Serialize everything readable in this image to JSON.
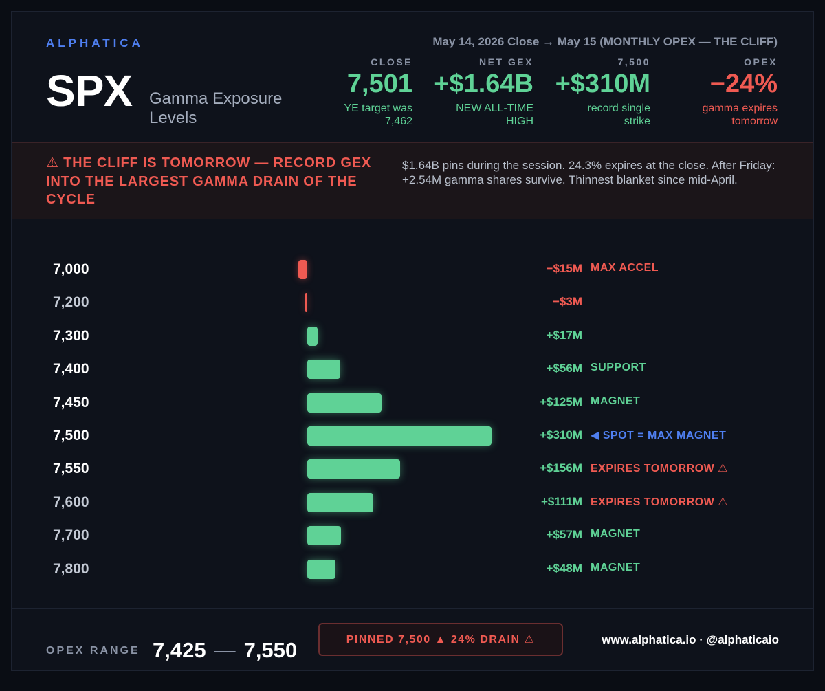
{
  "header": {
    "brand": "ALPHATICA",
    "ticker": "SPX",
    "subtitle": "Gamma Exposure Levels",
    "dateline": "May 14, 2026 Close → May 15 (MONTHLY OPEX — THE CLIFF)"
  },
  "stats": [
    {
      "label": "CLOSE",
      "value": "7,501",
      "sub": "YE target was 7,462",
      "tone": "green"
    },
    {
      "label": "NET GEX",
      "value": "+$1.64B",
      "sub": "NEW ALL-TIME HIGH",
      "tone": "green"
    },
    {
      "label": "7,500",
      "value": "+$310M",
      "sub": "record single strike",
      "tone": "green"
    },
    {
      "label": "OPEX",
      "value": "−24%",
      "sub": "gamma expires tomorrow",
      "tone": "red"
    }
  ],
  "alert": {
    "title": "⚠ THE CLIFF IS TOMORROW — RECORD GEX INTO THE LARGEST GAMMA DRAIN OF THE CYCLE",
    "body": "$1.64B pins during the session. 24.3% expires at the close. After Friday: +2.54M gamma shares survive. Thinnest blanket since mid-April."
  },
  "chart_data": {
    "type": "bar",
    "orientation": "horizontal",
    "unit": "$M",
    "categories": [
      "7,000",
      "7,200",
      "7,300",
      "7,400",
      "7,450",
      "7,500",
      "7,550",
      "7,600",
      "7,700",
      "7,800"
    ],
    "values": [
      -15,
      -3,
      17,
      56,
      125,
      310,
      156,
      111,
      57,
      48
    ],
    "value_labels": [
      "−$15M",
      "−$3M",
      "+$17M",
      "+$56M",
      "+$125M",
      "+$310M",
      "+$156M",
      "+$111M",
      "+$57M",
      "+$48M"
    ],
    "tags": [
      "MAX ACCEL",
      "",
      "",
      "SUPPORT",
      "MAGNET",
      "◀ SPOT = MAX MAGNET",
      "EXPIRES TOMORROW ⚠",
      "EXPIRES TOMORROW ⚠",
      "MAGNET",
      "MAGNET"
    ],
    "tag_tones": [
      "red",
      "",
      "",
      "green",
      "green",
      "blue",
      "red",
      "red",
      "green",
      "green"
    ],
    "highlight_labels": [
      "7,000",
      "7,300",
      "7,400",
      "7,450",
      "7,500",
      "7,550"
    ],
    "colors": {
      "positive": "#5fd296",
      "negative": "#ef5a52",
      "spot": "#4f7ff0"
    }
  },
  "footer": {
    "range_label": "OPEX RANGE",
    "range_low": "7,425",
    "range_sep": "—",
    "range_high": "7,550",
    "pinned": "PINNED 7,500 ▲ 24% DRAIN ⚠",
    "credits": "www.alphatica.io · @alphaticaio"
  }
}
